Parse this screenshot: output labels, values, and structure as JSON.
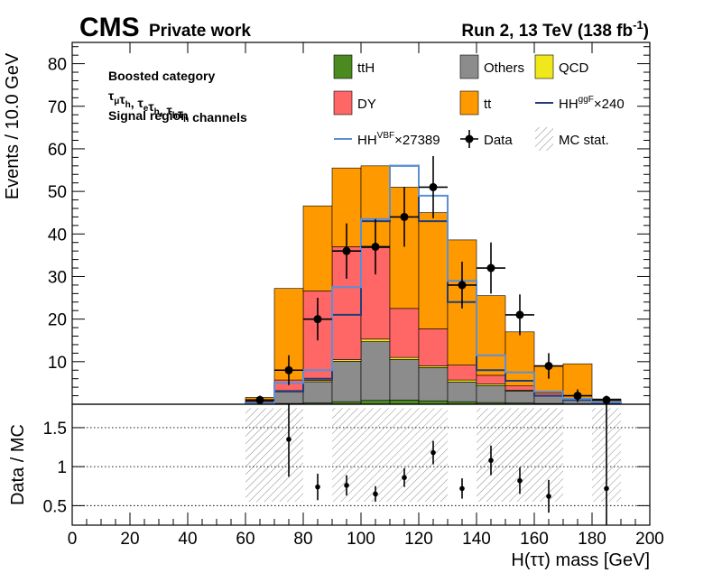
{
  "header": {
    "cms": "CMS",
    "private_work": "Private work",
    "run_info_pre": "Run 2, 13 TeV (138 fb",
    "run_info_sup": "-1",
    "run_info_post": ")"
  },
  "category": {
    "line1": "Boosted category",
    "line2_parts": [
      {
        "t": "τ",
        "sub": "μ"
      },
      {
        "t": "τ",
        "sub": "h"
      },
      {
        "t": ",  "
      },
      {
        "t": "τ",
        "sub": "e"
      },
      {
        "t": "τ",
        "sub": "h"
      },
      {
        "t": ",  "
      },
      {
        "t": "τ",
        "sub": "h"
      },
      {
        "t": "τ",
        "sub": "h"
      },
      {
        "t": " channels"
      }
    ],
    "line3": "Signal region"
  },
  "legend": [
    {
      "key": "tth",
      "label": "ttH",
      "kind": "fill"
    },
    {
      "key": "others",
      "label": "Others",
      "kind": "fill"
    },
    {
      "key": "qcd",
      "label": "QCD",
      "kind": "fill"
    },
    {
      "key": "dy",
      "label": "DY",
      "kind": "fill"
    },
    {
      "key": "tt",
      "label": "tt",
      "kind": "fill"
    },
    {
      "key": "hhggf",
      "label": "HH",
      "sup": "ggF",
      "suffix": "×240",
      "kind": "line"
    },
    {
      "key": "hhvbf",
      "label": "HH",
      "sup": "VBF",
      "suffix": "×27389",
      "kind": "line"
    },
    {
      "key": "data",
      "label": "Data",
      "kind": "marker"
    },
    {
      "key": "mcstat",
      "label": "MC stat.",
      "kind": "hatch"
    }
  ],
  "colors": {
    "tth": "#4b8a1e",
    "others": "#8c8c8c",
    "qcd": "#f0e81a",
    "dy": "#ff6666",
    "tt": "#ff9900",
    "hhggf": "#1f3f7a",
    "hhvbf": "#5b8fd6",
    "data": "#000000"
  },
  "chart_data": {
    "type": "bar",
    "xlabel": "H(ττ) mass [GeV]",
    "ylabel": "Events / 10.0 GeV",
    "ratio_ylabel": "Data / MC",
    "xlim": [
      0,
      200
    ],
    "ylim": [
      0,
      85
    ],
    "ratio_ylim": [
      0.25,
      1.8
    ],
    "xticks": [
      0,
      20,
      40,
      60,
      80,
      100,
      120,
      140,
      160,
      180,
      200
    ],
    "yticks": [
      10,
      20,
      30,
      40,
      50,
      60,
      70,
      80
    ],
    "ratio_yticks": [
      0.5,
      1,
      1.5
    ],
    "ratio_gridlines": [
      0.5,
      1,
      1.5
    ],
    "bin_width": 10,
    "bin_edges": [
      60,
      70,
      80,
      90,
      100,
      110,
      120,
      130,
      140,
      150,
      160,
      170,
      180,
      190
    ],
    "stack": {
      "tth": [
        0.1,
        0.2,
        0.3,
        0.6,
        0.9,
        1.0,
        0.8,
        0.6,
        0.4,
        0.3,
        0.2,
        0.1,
        0.05
      ],
      "others": [
        0.5,
        2.8,
        5.0,
        9.5,
        13.8,
        9.5,
        7.8,
        4.6,
        4.0,
        2.8,
        1.8,
        0.9,
        0.5
      ],
      "qcd": [
        0.1,
        0.2,
        0.3,
        0.4,
        0.6,
        0.5,
        0.4,
        0.5,
        0.4,
        0.2,
        0.1,
        0.0,
        0.0
      ],
      "dy": [
        0.4,
        2.5,
        21.0,
        26.5,
        21.5,
        11.5,
        8.7,
        3.5,
        2.0,
        1.0,
        0.5,
        0.2,
        0.1
      ],
      "tt": [
        0.5,
        21.5,
        20.0,
        18.5,
        19.2,
        28.5,
        27.3,
        29.4,
        18.7,
        12.7,
        6.4,
        8.3,
        0.6
      ]
    },
    "hh_ggf": [
      0.1,
      3.0,
      6.0,
      21.0,
      43.0,
      56.0,
      43.0,
      24.0,
      8.0,
      5.5,
      2.0,
      1.0,
      0.3
    ],
    "hh_vbf": [
      0.2,
      5.0,
      8.0,
      27.5,
      43.5,
      56.0,
      49.0,
      29.0,
      11.5,
      7.5,
      3.0,
      1.3,
      0.5
    ],
    "data": {
      "x": [
        65,
        75,
        85,
        95,
        105,
        115,
        125,
        135,
        145,
        155,
        165,
        175,
        185
      ],
      "y": [
        1,
        8,
        20,
        36,
        37,
        44,
        51,
        28,
        32,
        21,
        9,
        2,
        1
      ],
      "yerr": [
        1.0,
        3.5,
        5.0,
        6.5,
        6.5,
        7.0,
        7.3,
        5.5,
        6.0,
        4.8,
        3.0,
        1.5,
        1.0
      ]
    },
    "ratio": {
      "x": [
        75,
        85,
        95,
        105,
        115,
        125,
        135,
        145,
        155,
        165,
        185
      ],
      "y": [
        1.35,
        0.74,
        0.76,
        0.65,
        0.86,
        1.18,
        0.72,
        1.08,
        0.82,
        0.62,
        0.72
      ],
      "yerr": [
        0.48,
        0.17,
        0.13,
        0.1,
        0.12,
        0.15,
        0.13,
        0.19,
        0.17,
        0.21,
        1.1
      ]
    },
    "mc_stat_band": {
      "bins": [
        [
          60,
          80
        ],
        [
          90,
          130
        ],
        [
          140,
          170
        ],
        [
          180,
          190
        ]
      ],
      "lo": 0.55,
      "hi": 1.75
    }
  }
}
